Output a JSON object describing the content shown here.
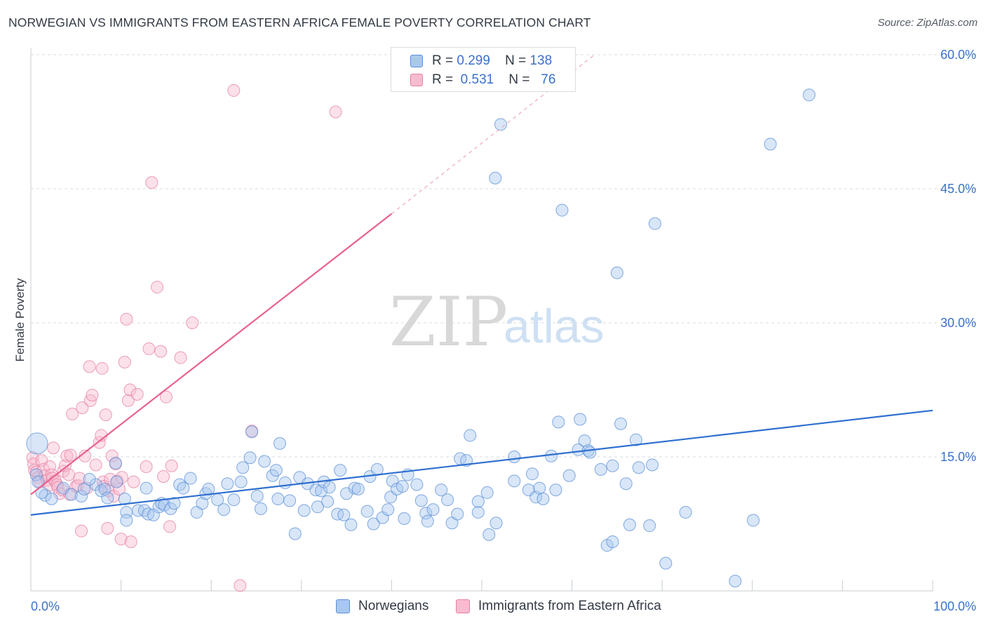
{
  "title": "NORWEGIAN VS IMMIGRANTS FROM EASTERN AFRICA FEMALE POVERTY CORRELATION CHART",
  "source": "Source: ZipAtlas.com",
  "watermark": {
    "zip": "ZIP",
    "atlas": "atlas"
  },
  "legend_top": {
    "rows": [
      {
        "r_label": "R =",
        "r_value": "0.299",
        "n_label": "N =",
        "n_value": "138"
      },
      {
        "r_label": "R =",
        "r_value": "0.531",
        "n_label": "N =",
        "n_value": "76"
      }
    ]
  },
  "legend_bottom": {
    "items": [
      "Norwegians",
      "Immigrants from Eastern Africa"
    ]
  },
  "colors": {
    "blue_fill": "#a9c8f0",
    "blue_stroke": "#5b8fd6",
    "blue_line": "#2f6fd0",
    "pink_fill": "#f8bcd0",
    "pink_stroke": "#e57fa2",
    "pink_line": "#e8628c",
    "axis_text": "#3a72c8",
    "grid": "#d8dbe0"
  },
  "chart_data": {
    "type": "scatter",
    "title": "NORWEGIAN VS IMMIGRANTS FROM EASTERN AFRICA FEMALE POVERTY CORRELATION CHART",
    "xlabel": "",
    "ylabel": "Female Poverty",
    "xlim": [
      0,
      100
    ],
    "ylim": [
      0,
      60
    ],
    "x_tick_labels": [
      "0.0%",
      "100.0%"
    ],
    "y_tick_labels": [
      "15.0%",
      "30.0%",
      "45.0%",
      "60.0%"
    ],
    "y_ticks": [
      15,
      30,
      45,
      60
    ],
    "grid": true,
    "legend_placement": "top-center",
    "series": [
      {
        "name": "Norwegians",
        "r": 0.299,
        "n": 138,
        "trend": {
          "x": [
            0,
            100
          ],
          "y": [
            8.5,
            20.2
          ]
        },
        "points": [
          [
            0.7,
            16.5
          ],
          [
            0.6,
            13
          ],
          [
            0.8,
            12.2
          ],
          [
            1.6,
            10.7
          ],
          [
            2.3,
            10.3
          ],
          [
            1.2,
            11
          ],
          [
            3.6,
            11.5
          ],
          [
            4.5,
            10.8
          ],
          [
            5.6,
            10.6
          ],
          [
            5.9,
            11.4
          ],
          [
            7.2,
            11.9
          ],
          [
            6.5,
            12.5
          ],
          [
            7.8,
            11.2
          ],
          [
            8.2,
            11.4
          ],
          [
            8.5,
            10.4
          ],
          [
            9.5,
            12.2
          ],
          [
            9.4,
            14.3
          ],
          [
            10.4,
            10.3
          ],
          [
            10.6,
            8.8
          ],
          [
            10.6,
            7.9
          ],
          [
            11.9,
            9
          ],
          [
            12.8,
            11.5
          ],
          [
            12.6,
            9
          ],
          [
            13,
            8.6
          ],
          [
            13.6,
            8.5
          ],
          [
            14.2,
            9.4
          ],
          [
            14.5,
            9.8
          ],
          [
            14.8,
            9.6
          ],
          [
            15.5,
            9.2
          ],
          [
            15.9,
            9.8
          ],
          [
            16.5,
            11.9
          ],
          [
            16.9,
            11.5
          ],
          [
            17.7,
            12.6
          ],
          [
            18.4,
            8.8
          ],
          [
            19,
            9.8
          ],
          [
            19.4,
            10.9
          ],
          [
            19.7,
            11.4
          ],
          [
            20.7,
            10.2
          ],
          [
            21.4,
            9.1
          ],
          [
            21.8,
            12
          ],
          [
            22.5,
            10.2
          ],
          [
            23.5,
            13.8
          ],
          [
            23.3,
            12.2
          ],
          [
            24.3,
            14.9
          ],
          [
            24.5,
            17.8
          ],
          [
            25.1,
            10.6
          ],
          [
            25.5,
            9.2
          ],
          [
            25.9,
            14.5
          ],
          [
            26.8,
            12.9
          ],
          [
            27.2,
            13.5
          ],
          [
            27.4,
            10.3
          ],
          [
            27.6,
            16.5
          ],
          [
            28.2,
            12.1
          ],
          [
            28.7,
            10.1
          ],
          [
            29.3,
            6.4
          ],
          [
            29.8,
            12.7
          ],
          [
            30.3,
            9
          ],
          [
            30.7,
            12
          ],
          [
            31.6,
            11.3
          ],
          [
            31.8,
            9.4
          ],
          [
            32.2,
            11.2
          ],
          [
            32.5,
            12.2
          ],
          [
            32.9,
            10
          ],
          [
            33.1,
            11.6
          ],
          [
            34,
            8.6
          ],
          [
            34.3,
            13.5
          ],
          [
            34.7,
            8.5
          ],
          [
            35,
            10.9
          ],
          [
            35.5,
            7.4
          ],
          [
            35.9,
            11.5
          ],
          [
            36.3,
            11.4
          ],
          [
            37.3,
            8.9
          ],
          [
            37.6,
            12.8
          ],
          [
            38,
            7.5
          ],
          [
            38.4,
            13.6
          ],
          [
            39,
            8.2
          ],
          [
            39.6,
            9.1
          ],
          [
            39.9,
            10.5
          ],
          [
            40.1,
            12.3
          ],
          [
            40.6,
            11.4
          ],
          [
            41.2,
            11.7
          ],
          [
            41.8,
            13
          ],
          [
            41.4,
            8.1
          ],
          [
            42.8,
            11.9
          ],
          [
            43.3,
            10.1
          ],
          [
            43.8,
            8.7
          ],
          [
            44,
            7.8
          ],
          [
            44.6,
            9.1
          ],
          [
            45.5,
            11.3
          ],
          [
            46.2,
            10.2
          ],
          [
            46.7,
            7.6
          ],
          [
            47.3,
            8.6
          ],
          [
            47.6,
            14.8
          ],
          [
            48.3,
            14.6
          ],
          [
            48.7,
            17.4
          ],
          [
            49.6,
            8.8
          ],
          [
            49.6,
            10
          ],
          [
            50.6,
            11
          ],
          [
            50.8,
            6.3
          ],
          [
            51.6,
            7.6
          ],
          [
            52.1,
            52.2
          ],
          [
            53.6,
            15
          ],
          [
            51.5,
            46.2
          ],
          [
            53.6,
            12.3
          ],
          [
            55.2,
            11.3
          ],
          [
            55.6,
            13.1
          ],
          [
            56,
            10.5
          ],
          [
            56.4,
            11.5
          ],
          [
            56.8,
            10.3
          ],
          [
            57.7,
            15.1
          ],
          [
            58.5,
            18.9
          ],
          [
            58.9,
            42.6
          ],
          [
            60.7,
            15.8
          ],
          [
            60.9,
            19.2
          ],
          [
            61.4,
            16.8
          ],
          [
            61.8,
            15.7
          ],
          [
            62,
            15.5
          ],
          [
            63.9,
            5.1
          ],
          [
            64.5,
            5.5
          ],
          [
            65,
            35.6
          ],
          [
            66.4,
            7.4
          ],
          [
            67.4,
            13.8
          ],
          [
            68.6,
            7.3
          ],
          [
            67.1,
            16.9
          ],
          [
            68.9,
            14.1
          ],
          [
            69.2,
            41.1
          ],
          [
            70.4,
            3.1
          ],
          [
            72.6,
            8.8
          ],
          [
            78.1,
            1.1
          ],
          [
            80.1,
            7.9
          ],
          [
            82,
            50
          ],
          [
            86.3,
            55.5
          ],
          [
            65.4,
            18.7
          ],
          [
            66,
            12
          ],
          [
            64.5,
            14
          ],
          [
            63.2,
            13.6
          ],
          [
            59.7,
            12.9
          ],
          [
            58.2,
            11.3
          ]
        ]
      },
      {
        "name": "Immigrants from Eastern Africa",
        "r": 0.531,
        "n": 76,
        "trend": {
          "x": [
            0,
            40
          ],
          "y": [
            10.8,
            42.2
          ]
        },
        "trend_dashed": {
          "x": [
            40,
            62.5
          ],
          "y": [
            42.2,
            60
          ]
        },
        "points": [
          [
            0.2,
            14.9
          ],
          [
            0.3,
            14.2
          ],
          [
            0.4,
            13.5
          ],
          [
            0.6,
            13.3
          ],
          [
            0.8,
            12.7
          ],
          [
            1,
            12.2
          ],
          [
            1.2,
            14.6
          ],
          [
            1.4,
            13.6
          ],
          [
            1.6,
            12.9
          ],
          [
            1.8,
            12.4
          ],
          [
            2,
            11.8
          ],
          [
            2.1,
            13.9
          ],
          [
            2.3,
            13
          ],
          [
            2.4,
            12.6
          ],
          [
            2.5,
            16
          ],
          [
            2.7,
            12.3
          ],
          [
            2.9,
            11.9
          ],
          [
            3,
            11.6
          ],
          [
            3.2,
            10.9
          ],
          [
            3.5,
            11.3
          ],
          [
            3.6,
            13.4
          ],
          [
            3.8,
            14
          ],
          [
            4,
            15.1
          ],
          [
            4.2,
            13
          ],
          [
            4.3,
            10.8
          ],
          [
            4.4,
            15.2
          ],
          [
            4.6,
            19.8
          ],
          [
            5,
            11.7
          ],
          [
            5.2,
            11.8
          ],
          [
            5.4,
            12.6
          ],
          [
            5.6,
            6.7
          ],
          [
            5.7,
            20.5
          ],
          [
            6,
            15.1
          ],
          [
            6.2,
            11.5
          ],
          [
            6.5,
            25.1
          ],
          [
            6.6,
            21.3
          ],
          [
            6.8,
            21.9
          ],
          [
            7.2,
            14.1
          ],
          [
            7.6,
            16.6
          ],
          [
            7.8,
            17.4
          ],
          [
            7.9,
            24.9
          ],
          [
            8,
            12.2
          ],
          [
            8.1,
            11.7
          ],
          [
            8.3,
            19.7
          ],
          [
            8.5,
            7
          ],
          [
            8.6,
            11.2
          ],
          [
            8.8,
            12.5
          ],
          [
            9,
            15.1
          ],
          [
            9.2,
            10.6
          ],
          [
            9.4,
            14.2
          ],
          [
            9.6,
            12.3
          ],
          [
            9.8,
            11.4
          ],
          [
            10,
            5.8
          ],
          [
            10.1,
            12.7
          ],
          [
            10.4,
            25.6
          ],
          [
            10.6,
            30.4
          ],
          [
            10.8,
            21.3
          ],
          [
            11,
            22.5
          ],
          [
            11.1,
            5.5
          ],
          [
            11.4,
            12.2
          ],
          [
            11.8,
            22
          ],
          [
            12.8,
            13.9
          ],
          [
            13.1,
            27.1
          ],
          [
            13.4,
            45.7
          ],
          [
            14,
            34
          ],
          [
            14.4,
            26.8
          ],
          [
            14.7,
            12.8
          ],
          [
            15,
            21.7
          ],
          [
            15.4,
            7.2
          ],
          [
            15.6,
            14
          ],
          [
            16.6,
            26.1
          ],
          [
            17.9,
            30
          ],
          [
            22.5,
            56
          ],
          [
            23.2,
            0.6
          ],
          [
            24.5,
            17.9
          ],
          [
            33.8,
            53.6
          ]
        ]
      }
    ]
  }
}
